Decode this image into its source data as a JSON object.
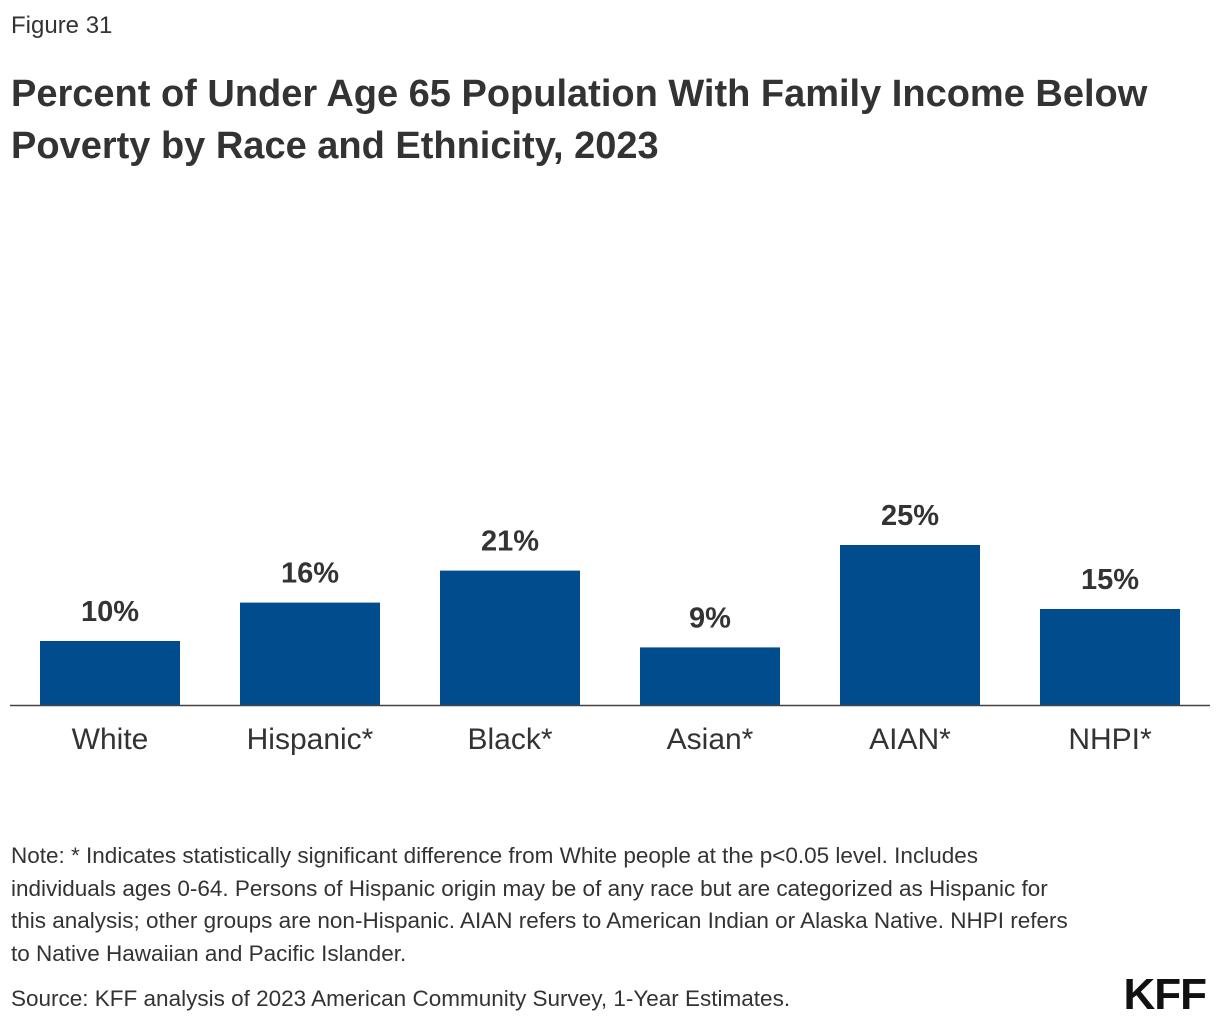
{
  "figure_label": "Figure 31",
  "title": "Percent of Under Age 65 Population With Family Income Below Poverty by Race and Ethnicity, 2023",
  "note": "Note: * Indicates statistically significant difference from White people at the p<0.05 level. Includes individuals ages 0-64. Persons of Hispanic origin may be of any race but are categorized as Hispanic for this analysis; other groups are non-Hispanic. AIAN refers to American Indian or Alaska Native. NHPI refers to Native Hawaiian and Pacific Islander.",
  "source": "Source: KFF analysis of 2023 American Community Survey, 1-Year Estimates.",
  "logo": "KFF",
  "colors": {
    "bar": "#004c8c",
    "axis": "#444444"
  },
  "chart_data": {
    "type": "bar",
    "categories": [
      "White",
      "Hispanic*",
      "Black*",
      "Asian*",
      "AIAN*",
      "NHPI*"
    ],
    "values": [
      10,
      16,
      21,
      9,
      25,
      15
    ],
    "data_labels": [
      "10%",
      "16%",
      "21%",
      "9%",
      "25%",
      "15%"
    ],
    "unit": "%",
    "grid": false,
    "legend": "none"
  }
}
